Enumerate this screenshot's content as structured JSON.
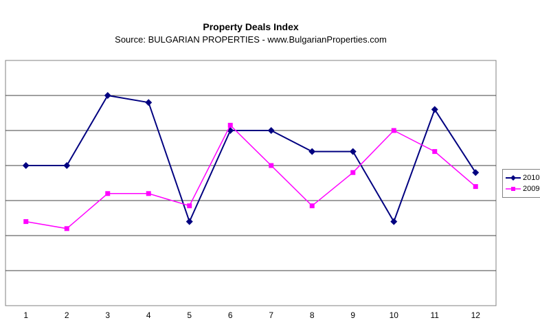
{
  "chart_data": {
    "type": "line",
    "title": "Property Deals Index",
    "subtitle": "Source: BULGARIAN PROPERTIES - www.BulgarianProperties.com",
    "xlabel": "",
    "ylabel": "",
    "categories": [
      "1",
      "2",
      "3",
      "4",
      "5",
      "6",
      "7",
      "8",
      "9",
      "10",
      "11",
      "12"
    ],
    "series": [
      {
        "name": "2010",
        "color": "#000080",
        "marker": "diamond",
        "line_width": 2,
        "values": [
          4.0,
          4.0,
          6.0,
          5.8,
          2.4,
          5.0,
          5.0,
          4.4,
          4.4,
          2.4,
          5.6,
          3.8
        ]
      },
      {
        "name": "2009",
        "color": "#ff00ff",
        "marker": "square",
        "line_width": 1.5,
        "values": [
          2.4,
          2.2,
          3.2,
          3.2,
          2.85,
          5.15,
          4.0,
          2.85,
          3.8,
          5.0,
          4.4,
          3.4
        ]
      }
    ],
    "ylim": [
      0,
      7
    ],
    "y_gridline_count": 7,
    "y_axis_labels_visible": false,
    "grid": true,
    "legend_position": "right",
    "colors": {
      "plot_border": "#808080",
      "gridline": "#404040",
      "background": "#ffffff",
      "text": "#000000"
    }
  }
}
